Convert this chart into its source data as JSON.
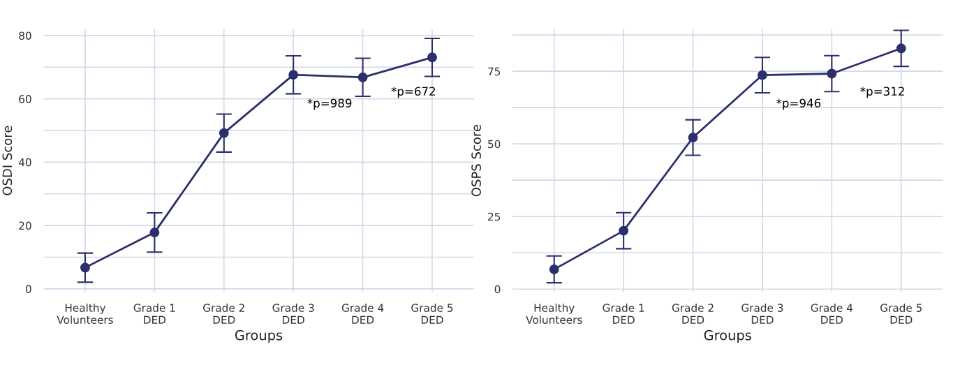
{
  "chart_data": [
    {
      "type": "line",
      "xlabel": "Groups",
      "ylabel": "OSDI Score",
      "categories": [
        "Healthy\nVolunteers",
        "Grade 1\nDED",
        "Grade 2\nDED",
        "Grade 3\nDED",
        "Grade 4\nDED",
        "Grade 5\nDED"
      ],
      "series": [
        {
          "color": "#2b2f6b",
          "values": [
            6.7,
            17.8,
            49.2,
            67.6,
            66.8,
            73.1
          ],
          "errors": [
            4.6,
            6.2,
            6,
            6,
            6,
            6
          ]
        }
      ],
      "ylim": [
        -1,
        82
      ],
      "yticks": [
        0,
        {
          "value": 10,
          "label": null
        },
        20,
        {
          "value": 30,
          "label": null
        },
        40,
        {
          "value": 50,
          "label": null
        },
        60,
        {
          "value": 70,
          "label": null
        },
        80
      ],
      "grid": true,
      "marker": "circle",
      "line_style": "solid",
      "annotations": [
        "*p=989",
        "*p=672"
      ]
    },
    {
      "type": "line",
      "xlabel": "Groups",
      "ylabel": "OSPS Score",
      "categories": [
        "Healthy\nVolunteers",
        "Grade 1\nDED",
        "Grade 2\nDED",
        "Grade 3\nDED",
        "Grade 4\nDED",
        "Grade 5\nDED"
      ],
      "series": [
        {
          "color": "#2b2f6b",
          "values": [
            6.8,
            20.1,
            52.2,
            73.7,
            74.2,
            82.9
          ],
          "errors": [
            4.6,
            6.2,
            6.1,
            6.1,
            6.2,
            6.2
          ]
        }
      ],
      "ylim": [
        -1,
        89.5
      ],
      "yticks": [
        0,
        {
          "value": 12.5,
          "label": null
        },
        25,
        {
          "value": 37.5,
          "label": null
        },
        50,
        {
          "value": 62.5,
          "label": null
        },
        75,
        {
          "value": 87.5,
          "label": null
        }
      ],
      "grid": true,
      "marker": "circle",
      "line_style": "solid",
      "annotations": [
        "*p=946",
        "*p=312"
      ]
    }
  ]
}
